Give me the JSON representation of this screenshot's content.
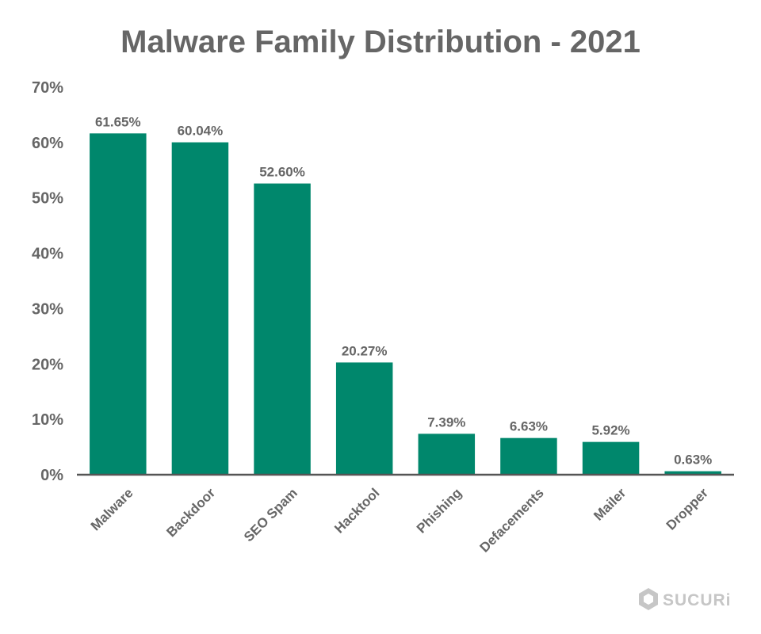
{
  "chart_data": {
    "type": "bar",
    "title": "Malware Family Distribution - 2021",
    "categories": [
      "Malware",
      "Backdoor",
      "SEO Spam",
      "Hacktool",
      "Phishing",
      "Defacements",
      "Mailer",
      "Dropper"
    ],
    "values": [
      61.65,
      60.04,
      52.6,
      20.27,
      7.39,
      6.63,
      5.92,
      0.63
    ],
    "data_labels": [
      "61.65%",
      "60.04%",
      "52.60%",
      "20.27%",
      "7.39%",
      "6.63%",
      "5.92%",
      "0.63%"
    ],
    "yticks": [
      0,
      10,
      20,
      30,
      40,
      50,
      60,
      70
    ],
    "ytick_labels": [
      "0%",
      "10%",
      "20%",
      "30%",
      "40%",
      "50%",
      "60%",
      "70%"
    ],
    "ylim": [
      0,
      70
    ],
    "xlabel": "",
    "ylabel": "",
    "grid": false,
    "bar_color": "#00876c",
    "axis_color": "#555555",
    "text_color": "#666666"
  },
  "branding": {
    "logo_text": "SUCURi",
    "logo_icon": "sucuri-shield-icon",
    "logo_color": "#c6c6c6"
  }
}
